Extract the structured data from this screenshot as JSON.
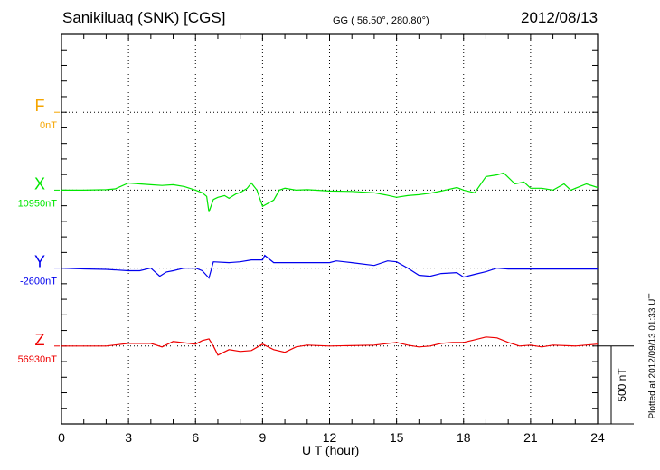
{
  "header": {
    "title": "Sanikiluaq (SNK)  [CGS]",
    "coords": "GG ( 56.50°, 280.80°)",
    "date": "2012/08/13"
  },
  "footer": {
    "plotted": "Plotted at 2012/09/13 01:33 UT"
  },
  "chart_data": {
    "type": "line",
    "title": "Sanikiluaq (SNK)  [CGS]",
    "xlabel": "U T (hour)",
    "xlim": [
      0,
      24
    ],
    "xticks": [
      "0",
      "3",
      "6",
      "9",
      "12",
      "15",
      "18",
      "21",
      "24"
    ],
    "grid": true,
    "scale_bar": "500 nT",
    "scale_nT": 500,
    "panel_spacing_nT": 500,
    "ylim_offset_nT": [
      0,
      2500
    ],
    "series": [
      {
        "name": "F",
        "base": "0nT",
        "color": "#f5a500",
        "points": []
      },
      {
        "name": "X",
        "base": "10950nT",
        "color": "#00e600",
        "points": [
          [
            0,
            0
          ],
          [
            1,
            0
          ],
          [
            2,
            3
          ],
          [
            2.4,
            8
          ],
          [
            3,
            46
          ],
          [
            3.5,
            40
          ],
          [
            4,
            35
          ],
          [
            4.5,
            30
          ],
          [
            5,
            35
          ],
          [
            5.5,
            23
          ],
          [
            6,
            0
          ],
          [
            6.3,
            -17
          ],
          [
            6.5,
            -40
          ],
          [
            6.6,
            -140
          ],
          [
            6.8,
            -60
          ],
          [
            7,
            -46
          ],
          [
            7.3,
            -35
          ],
          [
            7.5,
            -52
          ],
          [
            7.8,
            -25
          ],
          [
            8,
            -15
          ],
          [
            8.3,
            10
          ],
          [
            8.5,
            46
          ],
          [
            8.75,
            0
          ],
          [
            9,
            -104
          ],
          [
            9.3,
            -80
          ],
          [
            9.5,
            -64
          ],
          [
            9.75,
            0
          ],
          [
            10,
            12
          ],
          [
            10.5,
            0
          ],
          [
            11,
            3
          ],
          [
            12,
            -6
          ],
          [
            13,
            -8
          ],
          [
            14,
            -17
          ],
          [
            14.5,
            -30
          ],
          [
            15,
            -46
          ],
          [
            15.5,
            -35
          ],
          [
            16,
            -29
          ],
          [
            16.5,
            -20
          ],
          [
            17,
            -6
          ],
          [
            17.7,
            17
          ],
          [
            18,
            0
          ],
          [
            18.5,
            -17
          ],
          [
            19,
            87
          ],
          [
            19.5,
            98
          ],
          [
            19.8,
            110
          ],
          [
            20.3,
            40
          ],
          [
            20.7,
            52
          ],
          [
            21,
            12
          ],
          [
            21.5,
            12
          ],
          [
            22,
            0
          ],
          [
            22.5,
            40
          ],
          [
            22.8,
            0
          ],
          [
            23.5,
            40
          ],
          [
            24,
            17
          ]
        ]
      },
      {
        "name": "Y",
        "base": "-2600nT",
        "color": "#0000ee",
        "points": [
          [
            0,
            0
          ],
          [
            1,
            -5
          ],
          [
            2,
            -8
          ],
          [
            3,
            -17
          ],
          [
            3.5,
            -17
          ],
          [
            4,
            0
          ],
          [
            4.4,
            -52
          ],
          [
            4.7,
            -25
          ],
          [
            5,
            -17
          ],
          [
            5.5,
            0
          ],
          [
            6,
            0
          ],
          [
            6.3,
            -17
          ],
          [
            6.6,
            -64
          ],
          [
            6.8,
            40
          ],
          [
            7.5,
            35
          ],
          [
            8,
            40
          ],
          [
            8.5,
            52
          ],
          [
            9,
            52
          ],
          [
            9.1,
            81
          ],
          [
            9.5,
            35
          ],
          [
            10,
            35
          ],
          [
            11,
            35
          ],
          [
            12,
            35
          ],
          [
            12.3,
            46
          ],
          [
            13,
            35
          ],
          [
            14,
            17
          ],
          [
            14.6,
            46
          ],
          [
            15,
            40
          ],
          [
            15.5,
            0
          ],
          [
            16,
            -46
          ],
          [
            16.5,
            -52
          ],
          [
            17,
            -35
          ],
          [
            17.7,
            -29
          ],
          [
            18,
            -58
          ],
          [
            18.5,
            -40
          ],
          [
            19,
            -23
          ],
          [
            19.5,
            0
          ],
          [
            20,
            -6
          ],
          [
            22,
            -6
          ],
          [
            24,
            -6
          ]
        ]
      },
      {
        "name": "Z",
        "base": "56930nT",
        "color": "#ee0000",
        "points": [
          [
            0,
            0
          ],
          [
            2,
            0
          ],
          [
            3,
            17
          ],
          [
            4,
            17
          ],
          [
            4.5,
            -6
          ],
          [
            5,
            29
          ],
          [
            6,
            12
          ],
          [
            6.3,
            35
          ],
          [
            6.6,
            46
          ],
          [
            6.8,
            0
          ],
          [
            7,
            -58
          ],
          [
            7.5,
            -23
          ],
          [
            8,
            -35
          ],
          [
            8.5,
            -29
          ],
          [
            9,
            12
          ],
          [
            9.5,
            -23
          ],
          [
            10,
            -40
          ],
          [
            10.5,
            -6
          ],
          [
            11,
            6
          ],
          [
            12,
            0
          ],
          [
            14,
            6
          ],
          [
            15,
            23
          ],
          [
            15.5,
            6
          ],
          [
            16,
            -6
          ],
          [
            16.5,
            0
          ],
          [
            17,
            17
          ],
          [
            17.5,
            23
          ],
          [
            18,
            23
          ],
          [
            18.5,
            40
          ],
          [
            19,
            58
          ],
          [
            19.5,
            52
          ],
          [
            20,
            23
          ],
          [
            20.5,
            0
          ],
          [
            21,
            6
          ],
          [
            21.5,
            -6
          ],
          [
            22,
            6
          ],
          [
            23,
            0
          ],
          [
            24,
            12
          ]
        ]
      }
    ]
  }
}
